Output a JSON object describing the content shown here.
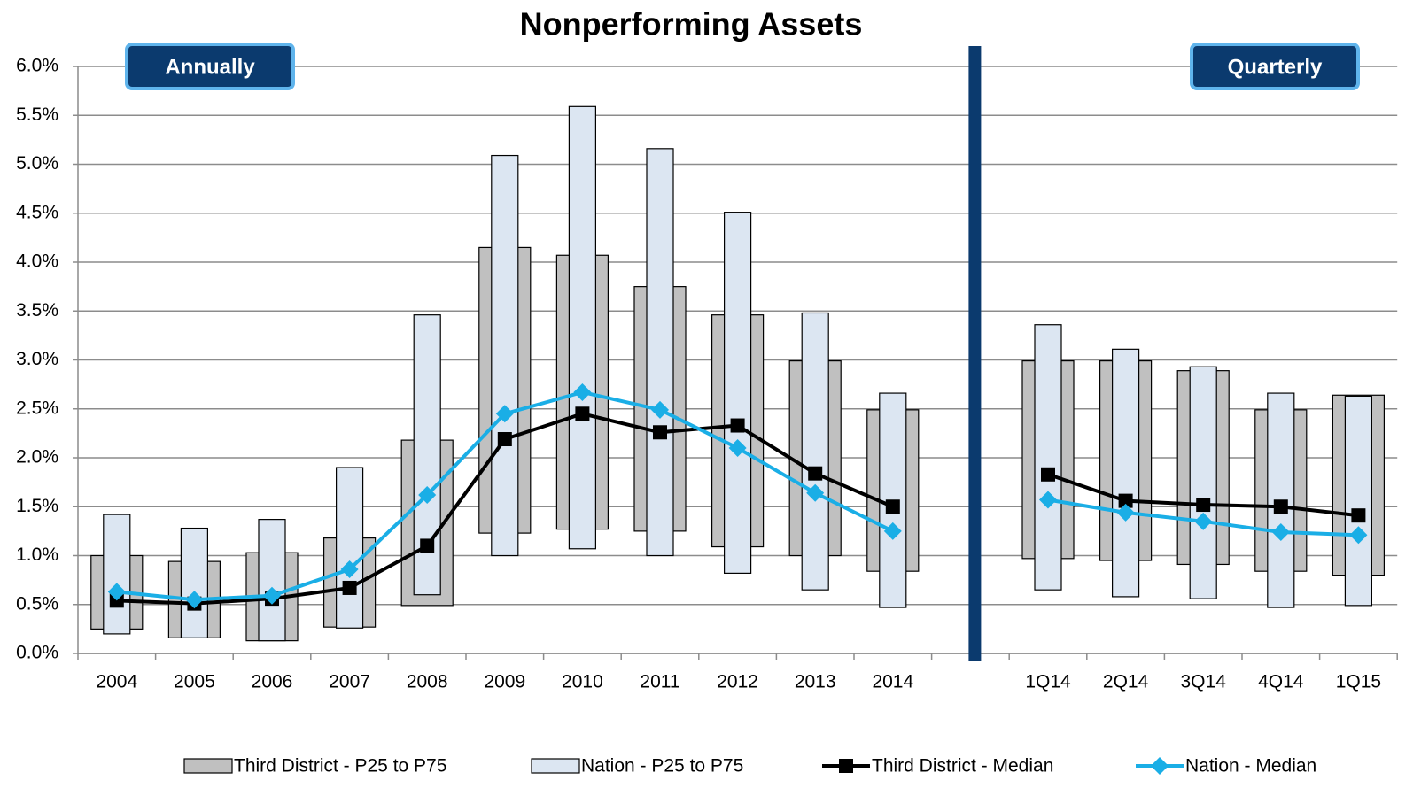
{
  "chart_data": {
    "type": "range-bar-line",
    "title": "Nonperforming Assets",
    "annotations": [
      "Annually",
      "Quarterly"
    ],
    "categories": [
      "2004",
      "2005",
      "2006",
      "2007",
      "2008",
      "2009",
      "2010",
      "2011",
      "2012",
      "2013",
      "2014",
      null,
      "1Q14",
      "2Q14",
      "3Q14",
      "4Q14",
      "1Q15"
    ],
    "ylim": [
      0,
      6
    ],
    "yticks": [
      {
        "value": 0,
        "label": "0.0%"
      },
      {
        "value": 0.5,
        "label": "0.5%"
      },
      {
        "value": 1,
        "label": "1.0%"
      },
      {
        "value": 1.5,
        "label": "1.5%"
      },
      {
        "value": 2,
        "label": "2.0%"
      },
      {
        "value": 2.5,
        "label": "2.5%"
      },
      {
        "value": 3,
        "label": "3.0%"
      },
      {
        "value": 3.5,
        "label": "3.5%"
      },
      {
        "value": 4,
        "label": "4.0%"
      },
      {
        "value": 4.5,
        "label": "4.5%"
      },
      {
        "value": 5,
        "label": "5.0%"
      },
      {
        "value": 5.5,
        "label": "5.5%"
      },
      {
        "value": 6,
        "label": "6.0%"
      }
    ],
    "grid": true,
    "legend": "bottom",
    "ranges": [
      {
        "name": "Third District - P25 to P75",
        "color": "#c0c0c0",
        "low": [
          0.25,
          0.16,
          0.13,
          0.27,
          0.49,
          1.23,
          1.27,
          1.25,
          1.09,
          1.0,
          0.84,
          null,
          0.97,
          0.95,
          0.91,
          0.84,
          0.8
        ],
        "high": [
          1.0,
          0.94,
          1.03,
          1.18,
          2.18,
          4.15,
          4.07,
          3.75,
          3.46,
          2.99,
          2.49,
          null,
          2.99,
          2.99,
          2.89,
          2.49,
          2.64
        ]
      },
      {
        "name": "Nation - P25 to P75",
        "color": "#dce6f2",
        "low": [
          0.2,
          0.16,
          0.13,
          0.26,
          0.6,
          1.0,
          1.07,
          1.0,
          0.82,
          0.65,
          0.47,
          null,
          0.65,
          0.58,
          0.56,
          0.47,
          0.49
        ],
        "high": [
          1.42,
          1.28,
          1.37,
          1.9,
          3.46,
          5.09,
          5.59,
          5.16,
          4.51,
          3.48,
          2.66,
          null,
          3.36,
          3.11,
          2.93,
          2.66,
          2.63
        ]
      }
    ],
    "series": [
      {
        "name": "Third District - Median",
        "color": "#000000",
        "marker": "square",
        "values": [
          0.54,
          0.51,
          0.56,
          0.67,
          1.1,
          2.19,
          2.45,
          2.26,
          2.33,
          1.84,
          1.5,
          null,
          1.83,
          1.56,
          1.52,
          1.5,
          1.41
        ]
      },
      {
        "name": "Nation - Median",
        "color": "#1aaee6",
        "marker": "diamond",
        "values": [
          0.63,
          0.55,
          0.59,
          0.86,
          1.62,
          2.45,
          2.67,
          2.49,
          2.1,
          1.64,
          1.25,
          null,
          1.57,
          1.44,
          1.35,
          1.24,
          1.21
        ]
      }
    ]
  }
}
